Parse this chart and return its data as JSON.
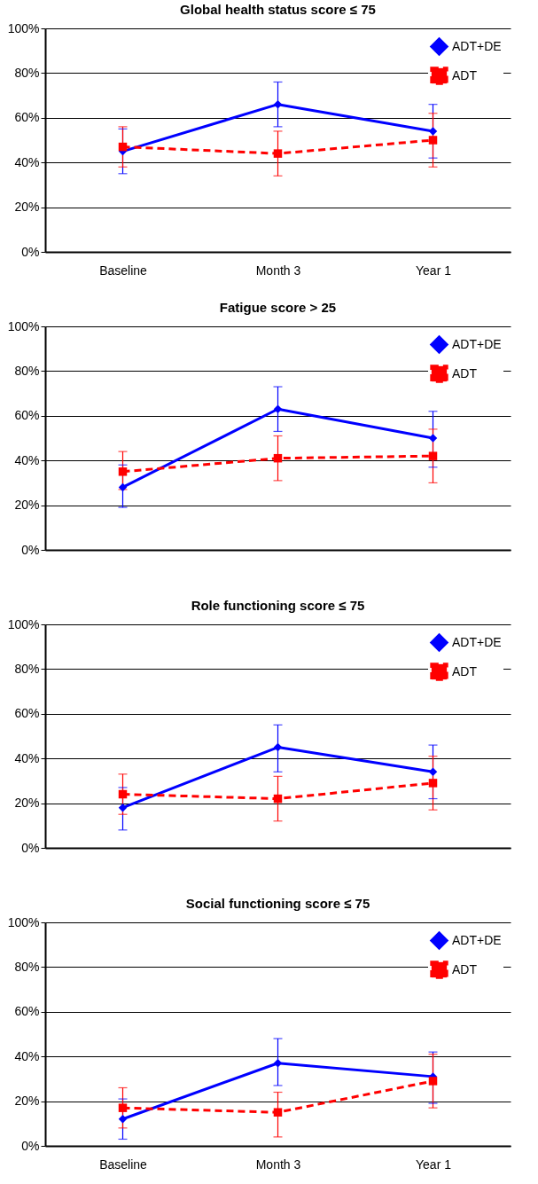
{
  "chart_data": [
    {
      "type": "line",
      "title": "Global health status score ≤ 75",
      "categories": [
        "Baseline",
        "Month 3",
        "Year 1"
      ],
      "ylim": [
        0,
        100
      ],
      "yticks": [
        {
          "value": 0,
          "label": "0%"
        },
        {
          "value": 20,
          "label": "20%"
        },
        {
          "value": 40,
          "label": "40%"
        },
        {
          "value": 60,
          "label": "60%"
        },
        {
          "value": 80,
          "label": "80%"
        },
        {
          "value": 100,
          "label": "100%"
        }
      ],
      "grid": "y",
      "legend": "top right",
      "series": [
        {
          "name": "ADT+DE",
          "color": "#0000ff",
          "marker": "diamond",
          "line_style": "solid",
          "values": [
            45,
            66,
            54
          ],
          "errors": [
            [
              35,
              55
            ],
            [
              56,
              76
            ],
            [
              42,
              66
            ]
          ]
        },
        {
          "name": "ADT",
          "color": "#ff0000",
          "marker": "square",
          "line_style": "dashed",
          "values": [
            47,
            44,
            50
          ],
          "errors": [
            [
              38,
              56
            ],
            [
              34,
              54
            ],
            [
              38,
              62
            ]
          ]
        }
      ]
    },
    {
      "type": "line",
      "title": "Fatigue score > 25",
      "categories": [
        null,
        null,
        null
      ],
      "ylim": [
        0,
        100
      ],
      "yticks": [
        {
          "value": 0,
          "label": "0%"
        },
        {
          "value": 20,
          "label": "20%"
        },
        {
          "value": 40,
          "label": "40%"
        },
        {
          "value": 60,
          "label": "60%"
        },
        {
          "value": 80,
          "label": "80%"
        },
        {
          "value": 100,
          "label": "100%"
        }
      ],
      "grid": "y",
      "legend": "top right",
      "series": [
        {
          "name": "ADT+DE",
          "color": "#0000ff",
          "marker": "diamond",
          "line_style": "solid",
          "values": [
            28,
            63,
            50
          ],
          "errors": [
            [
              19,
              38
            ],
            [
              53,
              73
            ],
            [
              37,
              62
            ]
          ]
        },
        {
          "name": "ADT",
          "color": "#ff0000",
          "marker": "square",
          "line_style": "dashed",
          "values": [
            35,
            41,
            42
          ],
          "errors": [
            [
              27,
              44
            ],
            [
              31,
              51
            ],
            [
              30,
              54
            ]
          ]
        }
      ]
    },
    {
      "type": "line",
      "title": "Role functioning score ≤ 75",
      "categories": [
        null,
        null,
        null
      ],
      "ylim": [
        0,
        100
      ],
      "yticks": [
        {
          "value": 0,
          "label": "0%"
        },
        {
          "value": 20,
          "label": "20%"
        },
        {
          "value": 40,
          "label": "40%"
        },
        {
          "value": 60,
          "label": "60%"
        },
        {
          "value": 80,
          "label": "80%"
        },
        {
          "value": 100,
          "label": "100%"
        }
      ],
      "grid": "y",
      "legend": "top right",
      "series": [
        {
          "name": "ADT+DE",
          "color": "#0000ff",
          "marker": "diamond",
          "line_style": "solid",
          "values": [
            18,
            45,
            34
          ],
          "errors": [
            [
              8,
              27
            ],
            [
              34,
              55
            ],
            [
              22,
              46
            ]
          ]
        },
        {
          "name": "ADT",
          "color": "#ff0000",
          "marker": "square",
          "line_style": "dashed",
          "values": [
            24,
            22,
            29
          ],
          "errors": [
            [
              15,
              33
            ],
            [
              12,
              32
            ],
            [
              17,
              41
            ]
          ]
        }
      ]
    },
    {
      "type": "line",
      "title": "Social functioning score ≤ 75",
      "categories": [
        "Baseline",
        "Month 3",
        "Year 1"
      ],
      "ylim": [
        0,
        100
      ],
      "yticks": [
        {
          "value": 0,
          "label": "0%"
        },
        {
          "value": 20,
          "label": "20%"
        },
        {
          "value": 40,
          "label": "40%"
        },
        {
          "value": 60,
          "label": "60%"
        },
        {
          "value": 80,
          "label": "80%"
        },
        {
          "value": 100,
          "label": "100%"
        }
      ],
      "grid": "y",
      "legend": "top right",
      "series": [
        {
          "name": "ADT+DE",
          "color": "#0000ff",
          "marker": "diamond",
          "line_style": "solid",
          "values": [
            12,
            37,
            31
          ],
          "errors": [
            [
              3,
              21
            ],
            [
              27,
              48
            ],
            [
              19,
              42
            ]
          ]
        },
        {
          "name": "ADT",
          "color": "#ff0000",
          "marker": "square",
          "line_style": "dashed",
          "values": [
            17,
            15,
            29
          ],
          "errors": [
            [
              8,
              26
            ],
            [
              4,
              24
            ],
            [
              17,
              41
            ]
          ]
        }
      ]
    }
  ]
}
